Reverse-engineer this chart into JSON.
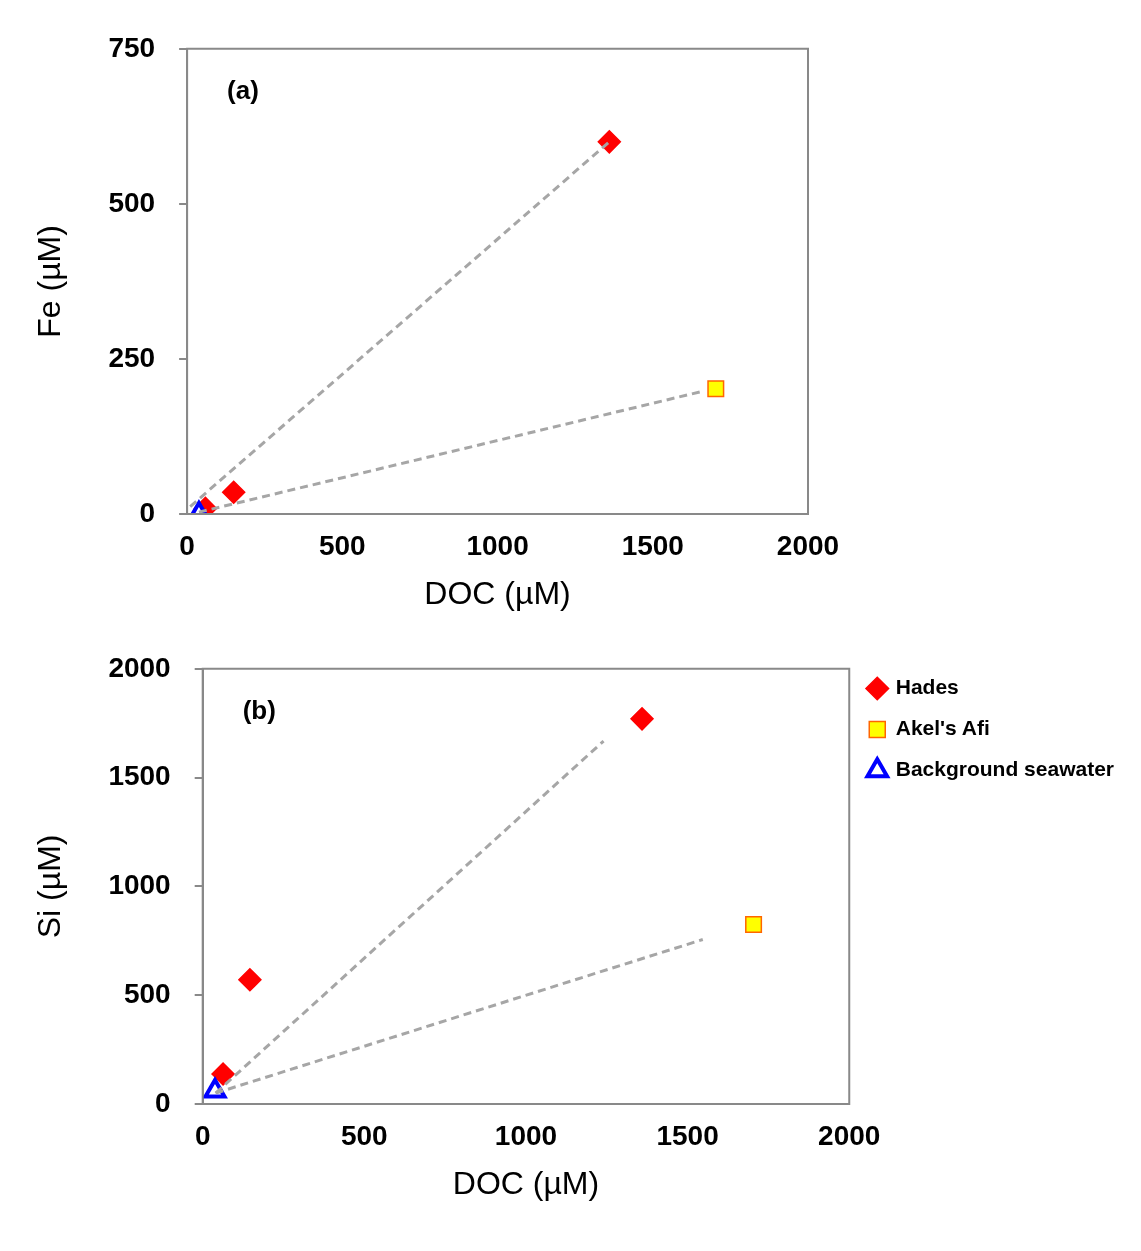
{
  "chart_data": [
    {
      "type": "scatter",
      "xlabel": "DOC (µM)",
      "ylabel": "Fe (µM)",
      "annotations": [
        "(a)"
      ],
      "xlim": [
        0,
        2000
      ],
      "xticks": [
        0,
        500,
        1000,
        1500,
        2000
      ],
      "ylim": [
        0,
        750
      ],
      "yticks": [
        0,
        250,
        500,
        750
      ],
      "grid": false,
      "legend": false,
      "series": [
        {
          "type": "line",
          "color": "#a6a6a6",
          "line_style": "dashed",
          "marker": "none",
          "x": [
            10,
            1360
          ],
          "values": [
            12,
            600
          ]
        },
        {
          "type": "line",
          "color": "#a6a6a6",
          "line_style": "dashed",
          "marker": "none",
          "x": [
            38,
            1654
          ],
          "values": [
            3,
            197
          ]
        },
        {
          "color": "#ff0000",
          "marker": "diamond",
          "x": [
            59,
            150,
            1360
          ],
          "values": [
            9,
            35,
            600
          ]
        },
        {
          "color": "#ffff00",
          "marker": "square",
          "x": [
            1703
          ],
          "values": [
            202
          ]
        },
        {
          "color": "#0000ff",
          "marker": "triangle",
          "x": [
            38
          ],
          "values": [
            0
          ]
        }
      ]
    },
    {
      "type": "scatter",
      "xlabel": "DOC (µM)",
      "ylabel": "Si (µM)",
      "annotations": [
        "(b)"
      ],
      "xlim": [
        0,
        2000
      ],
      "xticks": [
        0,
        500,
        1000,
        1500,
        2000
      ],
      "ylim": [
        0,
        2000
      ],
      "yticks": [
        0,
        500,
        1000,
        1500,
        2000
      ],
      "grid": false,
      "legend": "right",
      "series": [
        {
          "type": "line",
          "color": "#a6a6a6",
          "line_style": "dashed",
          "marker": "none",
          "x": [
            40,
            1240
          ],
          "values": [
            50,
            1668
          ]
        },
        {
          "type": "line",
          "color": "#a6a6a6",
          "line_style": "dashed",
          "marker": "none",
          "x": [
            40,
            1547
          ],
          "values": [
            50,
            756
          ]
        },
        {
          "name": "Hades",
          "color": "#ff0000",
          "marker": "diamond",
          "x": [
            63,
            146,
            1359
          ],
          "values": [
            138,
            571,
            1770
          ]
        },
        {
          "name": "Akel's Afi",
          "color": "#ffff00",
          "marker": "square",
          "x": [
            1704
          ],
          "values": [
            825
          ]
        },
        {
          "name": "Background seawater",
          "color": "#0000ff",
          "marker": "triangle",
          "x": [
            38
          ],
          "values": [
            60
          ]
        }
      ]
    }
  ]
}
